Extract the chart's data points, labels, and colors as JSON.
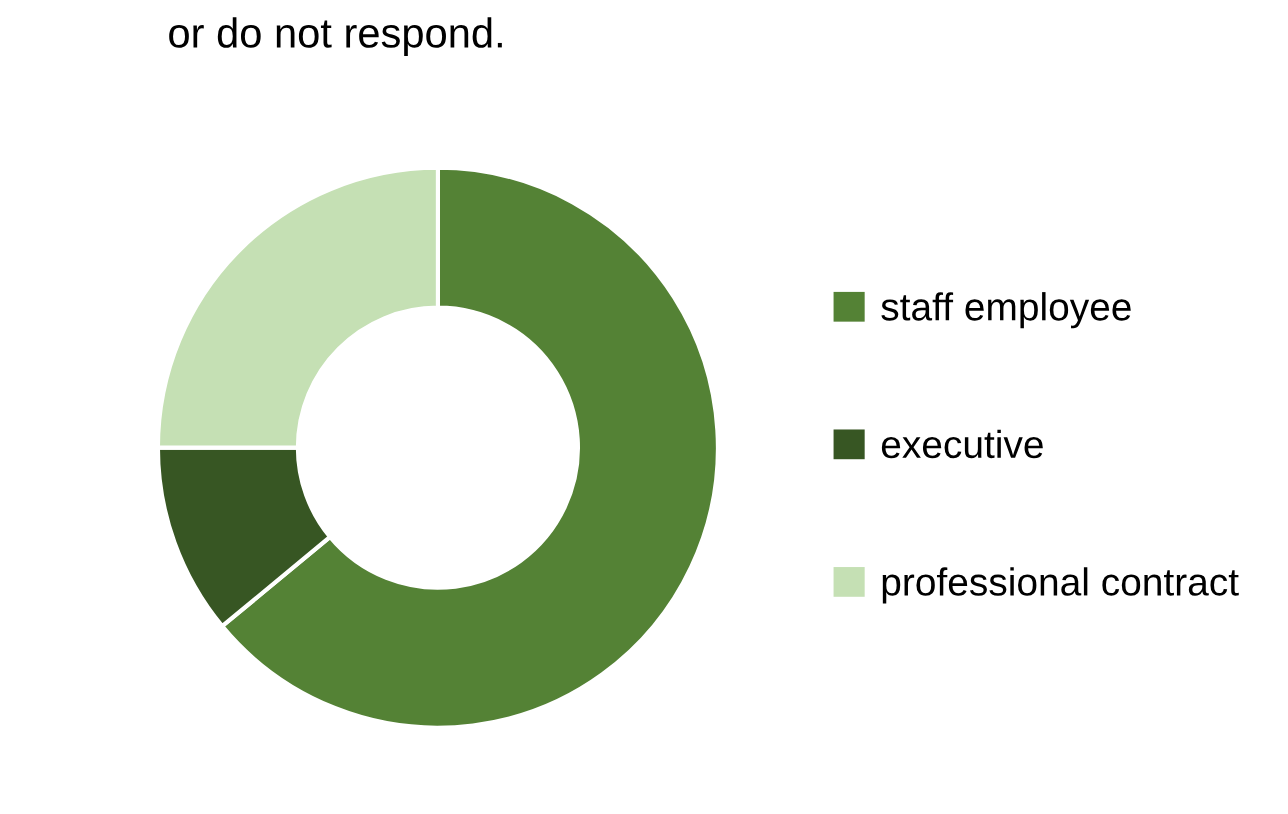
{
  "chart_data": {
    "type": "donut",
    "title": "or do not respond.",
    "categories": [
      "staff employee",
      "executive",
      "professional contract"
    ],
    "values": [
      64,
      11,
      25
    ],
    "colors": [
      "#548235",
      "#375623",
      "#c5e0b4"
    ],
    "legend": "right"
  }
}
